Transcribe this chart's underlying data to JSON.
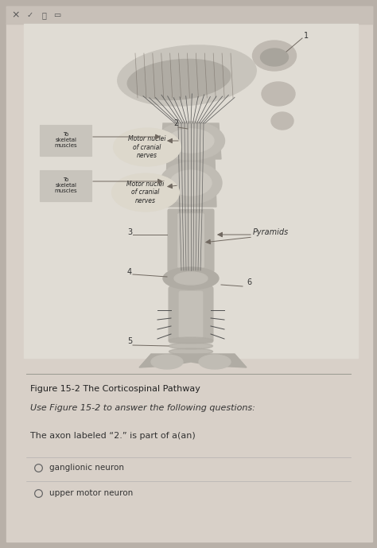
{
  "bg_outer": "#b8b0a8",
  "bg_page": "#d8d0c8",
  "bg_diagram": "#e8e4dc",
  "gray_light": "#c8c0b8",
  "gray_mid": "#a8a098",
  "gray_dark": "#706860",
  "gray_anatomy": "#9090888",
  "title_text": "Figure 15-2 The Corticospinal Pathway",
  "instruction_text": "Use Figure 15-2 to answer the following questions:",
  "question_text": "The axon labeled “2.” is part of a(an)",
  "options": [
    "ganglionic neuron",
    "upper motor neuron"
  ],
  "toolbar_bg": "#c8c0b8",
  "label_color": "#333333",
  "anatomy_bg": "#e0dcd4",
  "nerve_color": "#505050",
  "body_fill": "#b8b0a8",
  "body_dark": "#888078",
  "ellipse_label_bg": "#ddd8cc",
  "box_label_bg": "#c8c4bc"
}
